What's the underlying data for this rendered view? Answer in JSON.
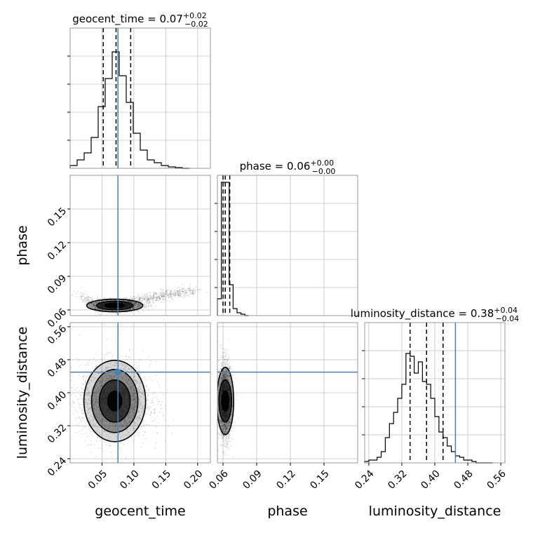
{
  "chart_data": {
    "type": "corner",
    "parameters": [
      "geocent_time",
      "phase",
      "luminosity_distance"
    ],
    "truths": {
      "geocent_time": 0.075,
      "phase": null,
      "luminosity_distance": 0.45
    },
    "truth_color": "#4682b4",
    "titles": {
      "geocent_time": {
        "name": "geocent_time",
        "median": "0.07",
        "plus": "+0.02",
        "minus": "−0.02"
      },
      "phase": {
        "name": "phase",
        "median": "0.06",
        "plus": "+0.00",
        "minus": "−0.00"
      },
      "luminosity_distance": {
        "name": "luminosity_distance",
        "median": "0.38",
        "plus": "+0.04",
        "minus": "−0.04"
      }
    },
    "axes": {
      "geocent_time": {
        "label": "geocent_time",
        "range": [
          0.0,
          0.22
        ],
        "ticks": [
          0.05,
          0.1,
          0.15,
          0.2
        ],
        "tick_labels": [
          "0.05",
          "0.10",
          "0.15",
          "0.20"
        ]
      },
      "phase": {
        "label": "phase",
        "range": [
          0.055,
          0.18
        ],
        "ticks": [
          0.06,
          0.09,
          0.12,
          0.15
        ],
        "tick_labels": [
          "0.06",
          "0.09",
          "0.12",
          "0.15"
        ]
      },
      "luminosity_distance": {
        "label": "luminosity_distance",
        "range": [
          0.23,
          0.57
        ],
        "ticks": [
          0.24,
          0.32,
          0.4,
          0.48,
          0.56
        ],
        "tick_labels": [
          "0.24",
          "0.32",
          "0.40",
          "0.48",
          "0.56"
        ]
      }
    },
    "histograms": {
      "geocent_time": {
        "edges": [
          0.0,
          0.011,
          0.022,
          0.033,
          0.044,
          0.055,
          0.066,
          0.077,
          0.088,
          0.099,
          0.11,
          0.121,
          0.132,
          0.143,
          0.154,
          0.165,
          0.176,
          0.187
        ],
        "counts": [
          0.02,
          0.06,
          0.11,
          0.22,
          0.44,
          0.64,
          0.83,
          0.66,
          0.47,
          0.25,
          0.13,
          0.06,
          0.04,
          0.02,
          0.01,
          0.005,
          0.0
        ],
        "quantiles": [
          0.052,
          0.072,
          0.095
        ]
      },
      "phase": {
        "edges": [
          0.055,
          0.0585,
          0.062,
          0.0655,
          0.069,
          0.0725,
          0.076,
          0.0795,
          0.083
        ],
        "counts": [
          0.12,
          0.95,
          0.95,
          0.22,
          0.05,
          0.02,
          0.01,
          0.0
        ],
        "quantiles": [
          0.06,
          0.062,
          0.066
        ]
      },
      "luminosity_distance": {
        "edges": [
          0.23,
          0.24,
          0.25,
          0.26,
          0.27,
          0.28,
          0.29,
          0.3,
          0.31,
          0.32,
          0.33,
          0.34,
          0.35,
          0.36,
          0.37,
          0.38,
          0.39,
          0.4,
          0.41,
          0.42,
          0.43,
          0.44,
          0.45,
          0.46,
          0.47,
          0.48,
          0.49,
          0.5,
          0.51,
          0.52,
          0.53,
          0.54
        ],
        "counts": [
          0.01,
          0.02,
          0.02,
          0.04,
          0.08,
          0.18,
          0.28,
          0.36,
          0.46,
          0.56,
          0.78,
          0.76,
          0.64,
          0.72,
          0.58,
          0.56,
          0.46,
          0.33,
          0.22,
          0.18,
          0.12,
          0.08,
          0.05,
          0.04,
          0.02,
          0.02,
          0.01,
          0.0,
          0.0,
          0.0,
          0.0
        ],
        "quantiles": [
          0.34,
          0.38,
          0.42
        ]
      }
    },
    "scatter_2d": {
      "phase_vs_geocent_time": {
        "center": [
          0.07,
          0.064
        ],
        "tail_to": [
          0.19,
          0.078
        ]
      },
      "luminosity_distance_vs_geocent_time": {
        "center": [
          0.07,
          0.38
        ]
      },
      "luminosity_distance_vs_phase": {
        "center": [
          0.062,
          0.38
        ]
      }
    },
    "grid": true
  }
}
